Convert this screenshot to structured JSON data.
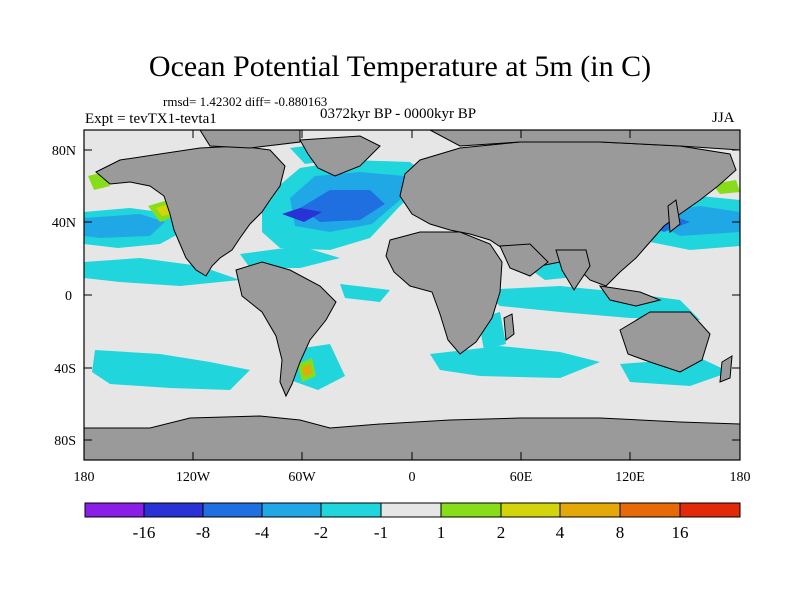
{
  "title": "Ocean Potential Temperature at 5m (in C)",
  "stats": "rmsd= 1.42302 diff= -0.880163",
  "experiment": "Expt = tevTX1-tevta1",
  "period": "0372kyr BP - 0000kyr BP",
  "season": "JJA",
  "axes": {
    "lat_ticks": [
      "80N",
      "40N",
      "0",
      "40S",
      "80S"
    ],
    "lon_ticks": [
      "180",
      "120W",
      "60W",
      "0",
      "60E",
      "120E",
      "180"
    ]
  },
  "colorbar": {
    "colors": [
      "#8a1ee6",
      "#2a32d6",
      "#1f6fe0",
      "#20a8e6",
      "#20d6dc",
      "#e6e6e6",
      "#88dd1a",
      "#d4d40c",
      "#e4a808",
      "#e66a08",
      "#e22a0a"
    ],
    "labels": [
      "-16",
      "-8",
      "-4",
      "-2",
      "-1",
      "1",
      "2",
      "4",
      "8",
      "16"
    ]
  },
  "map_colors": {
    "land": "#9a9a9a",
    "neutral": "#e6e6e6",
    "cool": "#20d6dc",
    "cooler": "#20a8e6",
    "cold": "#1f6fe0",
    "coldest": "#2a32d6",
    "warm": "#88dd1a",
    "warmer": "#d4d40c",
    "hot": "#e4a808"
  }
}
